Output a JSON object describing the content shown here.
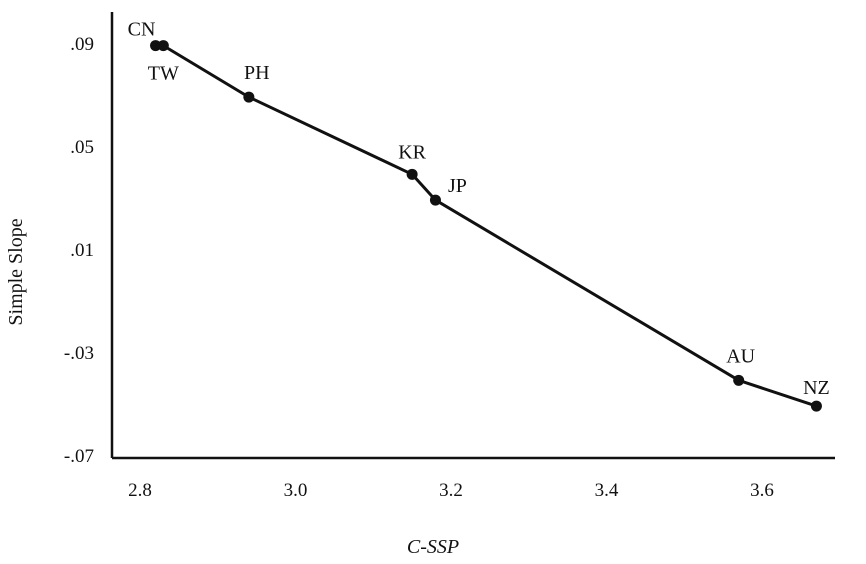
{
  "chart_data": {
    "type": "line",
    "xlabel": "C-SSP",
    "ylabel": "Simple Slope",
    "xlim": [
      2.78,
      3.7
    ],
    "ylim": [
      -0.07,
      0.1
    ],
    "x_ticks": [
      "2.8",
      "3.0",
      "3.2",
      "3.4",
      "3.6"
    ],
    "y_ticks": [
      ".09",
      ".05",
      ".01",
      "-.03",
      "-.07"
    ],
    "grid": false,
    "series": [
      {
        "points": [
          {
            "label": "CN",
            "x": 2.82,
            "y": 0.089
          },
          {
            "label": "TW",
            "x": 2.83,
            "y": 0.089
          },
          {
            "label": "PH",
            "x": 2.94,
            "y": 0.069
          },
          {
            "label": "KR",
            "x": 3.15,
            "y": 0.039
          },
          {
            "label": "JP",
            "x": 3.18,
            "y": 0.029
          },
          {
            "label": "AU",
            "x": 3.57,
            "y": -0.041
          },
          {
            "label": "NZ",
            "x": 3.67,
            "y": -0.051
          }
        ]
      }
    ]
  }
}
